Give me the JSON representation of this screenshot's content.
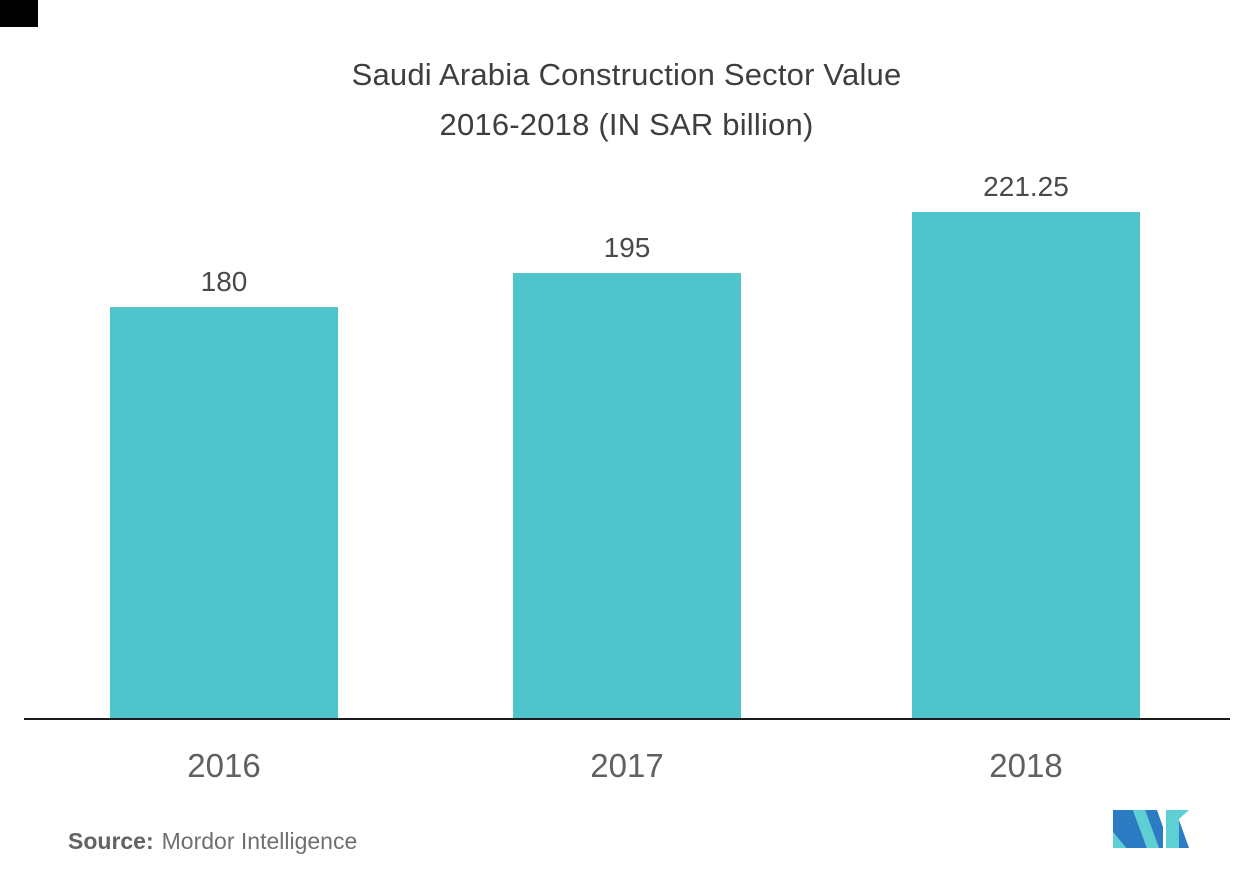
{
  "chart_data": {
    "type": "bar",
    "title": "Saudi Arabia Construction Sector Value",
    "subtitle": "2016-2018 (IN SAR billion)",
    "categories": [
      "2016",
      "2017",
      "2018"
    ],
    "values": [
      180,
      195,
      221.25
    ],
    "value_labels": [
      "180",
      "195",
      "221.25"
    ],
    "xlabel": "",
    "ylabel": "",
    "ylim": [
      0,
      250
    ],
    "grid": false,
    "legend": "none",
    "bar_color": "#4FC4CB"
  },
  "source": {
    "prefix": "Source:",
    "name": "Mordor Intelligence"
  },
  "logo": {
    "label": "mordor-intelligence-logo",
    "blue": "#2C7CC3",
    "teal": "#5ED0D4"
  },
  "colors": {
    "background": "#FFFFFF",
    "title": "#3E3E3E",
    "value_label": "#4A4A4A",
    "axis_label": "#5F6062",
    "axis_line": "#1C1C1C"
  }
}
